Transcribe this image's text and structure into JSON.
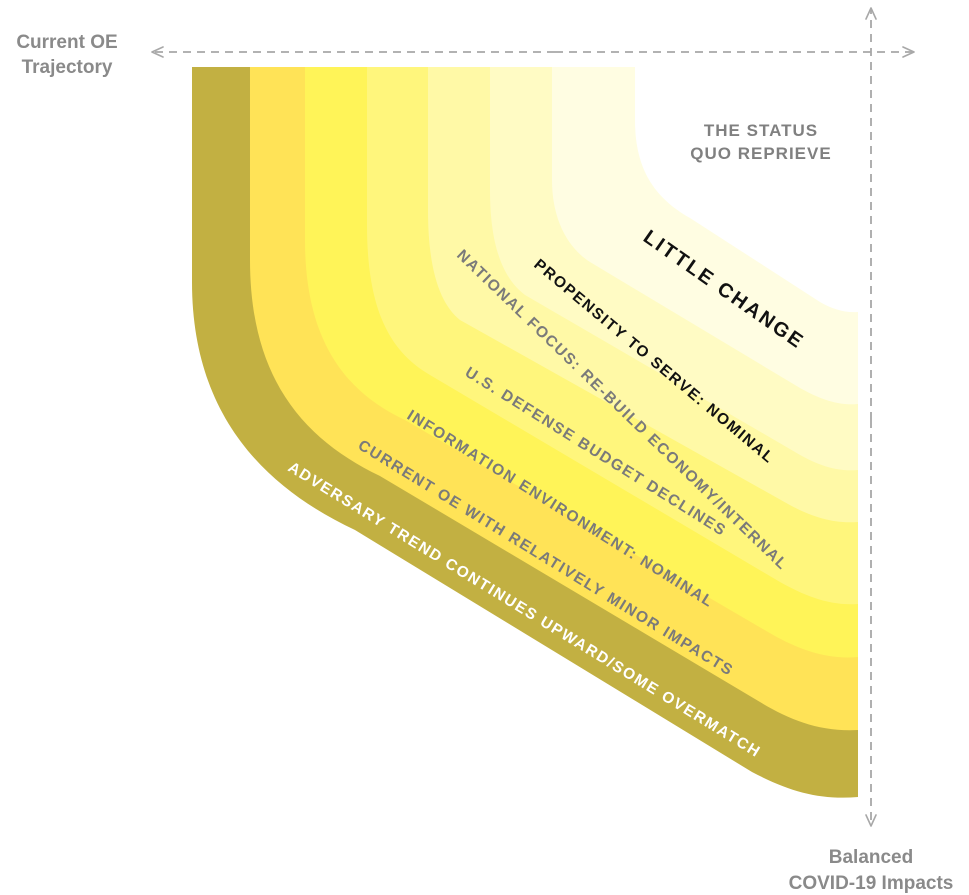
{
  "axes": {
    "horizontal_label_line1": "Current OE",
    "horizontal_label_line2": "Trajectory",
    "vertical_label_line1": "Balanced",
    "vertical_label_line2": "COVID-19 Impacts"
  },
  "scenario": {
    "title_line1": "THE STATUS",
    "title_line2": "QUO REPRIEVE"
  },
  "bands": [
    {
      "label": "ADVERSARY TREND CONTINUES UPWARD/SOME OVERMATCH",
      "color": "#c2b042",
      "text_color": "#ffffff"
    },
    {
      "label": "CURRENT OE WITH RELATIVELY MINOR IMPACTS",
      "color": "#ffe357",
      "text_color": "#7a7a7a"
    },
    {
      "label": "INFORMATION ENVIRONMENT: NOMINAL",
      "color": "#fff458",
      "text_color": "#7a7a7a"
    },
    {
      "label": "U.S. DEFENSE BUDGET DECLINES",
      "color": "#fff67c",
      "text_color": "#7a7a7a"
    },
    {
      "label": "NATIONAL FOCUS: RE-BUILD ECONOMY/INTERNAL",
      "color": "#fff9a6",
      "text_color": "#7a7a7a"
    },
    {
      "label": "PROPENSITY TO SERVE: NOMINAL",
      "color": "#fffbc4",
      "text_color": "#111111"
    },
    {
      "label": "LITTLE CHANGE",
      "color": "#fffde2",
      "text_color": "#111111"
    }
  ],
  "colors": {
    "axis_arrow": "#a8a8a8",
    "axis_text": "#8a8a8a"
  }
}
